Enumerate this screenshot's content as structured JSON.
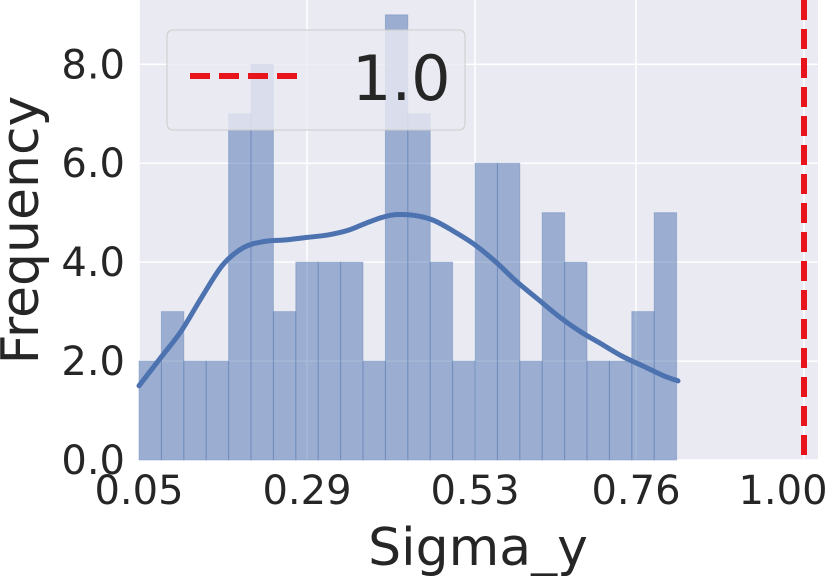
{
  "chart_data": {
    "type": "bar",
    "xlabel": "Sigma_y",
    "ylabel": "Frequency",
    "xlim": [
      0.05,
      1.02
    ],
    "ylim": [
      0,
      9.3
    ],
    "xticks": [
      "0.05",
      "0.29",
      "0.53",
      "0.76",
      "1.00"
    ],
    "yticks": [
      "0.0",
      "2.0",
      "4.0",
      "6.0",
      "8.0"
    ],
    "grid": true,
    "bins": [
      {
        "x0": 0.05,
        "x1": 0.082,
        "count": 2
      },
      {
        "x0": 0.082,
        "x1": 0.114,
        "count": 3
      },
      {
        "x0": 0.114,
        "x1": 0.146,
        "count": 2
      },
      {
        "x0": 0.146,
        "x1": 0.178,
        "count": 2
      },
      {
        "x0": 0.178,
        "x1": 0.21,
        "count": 7
      },
      {
        "x0": 0.21,
        "x1": 0.242,
        "count": 8
      },
      {
        "x0": 0.242,
        "x1": 0.274,
        "count": 3
      },
      {
        "x0": 0.274,
        "x1": 0.306,
        "count": 4
      },
      {
        "x0": 0.306,
        "x1": 0.338,
        "count": 4
      },
      {
        "x0": 0.338,
        "x1": 0.37,
        "count": 4
      },
      {
        "x0": 0.37,
        "x1": 0.402,
        "count": 2
      },
      {
        "x0": 0.402,
        "x1": 0.434,
        "count": 9
      },
      {
        "x0": 0.434,
        "x1": 0.466,
        "count": 7
      },
      {
        "x0": 0.466,
        "x1": 0.498,
        "count": 4
      },
      {
        "x0": 0.498,
        "x1": 0.53,
        "count": 2
      },
      {
        "x0": 0.53,
        "x1": 0.562,
        "count": 6
      },
      {
        "x0": 0.562,
        "x1": 0.594,
        "count": 6
      },
      {
        "x0": 0.594,
        "x1": 0.626,
        "count": 2
      },
      {
        "x0": 0.626,
        "x1": 0.658,
        "count": 5
      },
      {
        "x0": 0.658,
        "x1": 0.69,
        "count": 4
      },
      {
        "x0": 0.69,
        "x1": 0.722,
        "count": 2
      },
      {
        "x0": 0.722,
        "x1": 0.754,
        "count": 2
      },
      {
        "x0": 0.754,
        "x1": 0.786,
        "count": 3
      },
      {
        "x0": 0.786,
        "x1": 0.818,
        "count": 5
      }
    ],
    "kde": {
      "x": [
        0.05,
        0.08,
        0.11,
        0.14,
        0.17,
        0.2,
        0.23,
        0.26,
        0.29,
        0.32,
        0.35,
        0.38,
        0.41,
        0.44,
        0.47,
        0.5,
        0.53,
        0.56,
        0.59,
        0.62,
        0.65,
        0.68,
        0.71,
        0.74,
        0.77,
        0.8,
        0.82
      ],
      "y": [
        1.5,
        2.05,
        2.6,
        3.3,
        3.95,
        4.3,
        4.42,
        4.45,
        4.5,
        4.55,
        4.65,
        4.82,
        4.95,
        4.95,
        4.85,
        4.62,
        4.35,
        4.0,
        3.6,
        3.25,
        2.9,
        2.6,
        2.35,
        2.1,
        1.9,
        1.7,
        1.6
      ]
    },
    "reference_line": {
      "x": 1.0,
      "style": "dashed",
      "color": "#e8141c",
      "label": "1.0"
    },
    "legend": {
      "placement": "top-left",
      "entries": [
        "1.0"
      ]
    },
    "colors": {
      "background": "#eaeaf2",
      "grid": "#ffffff",
      "bar_fill": "#4c72b0",
      "bar_opacity": 0.5,
      "kde_line": "#4c72b0",
      "text": "#262626"
    }
  }
}
